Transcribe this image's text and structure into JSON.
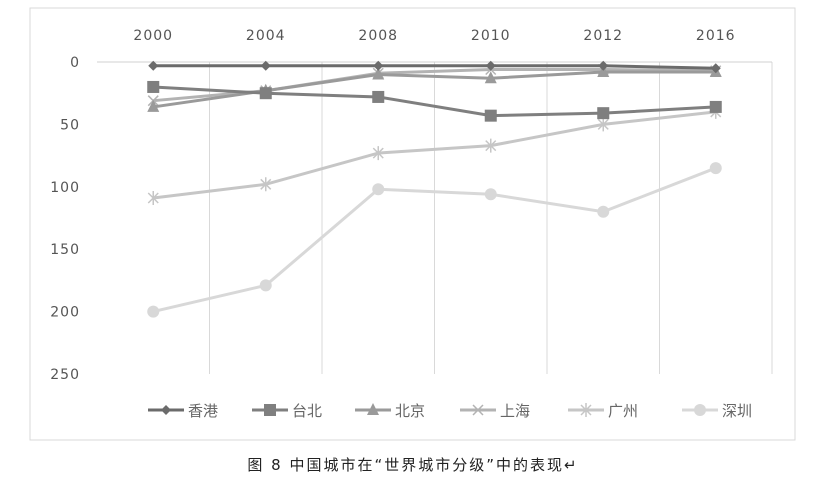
{
  "chart_data": {
    "type": "line",
    "title": "",
    "categories": [
      "2000",
      "2004",
      "2008",
      "2010",
      "2012",
      "2016"
    ],
    "x_axis_position": "top",
    "y_reversed": true,
    "ylim": [
      0,
      250
    ],
    "yticks": [
      "0",
      "50",
      "100",
      "150",
      "200",
      "250"
    ],
    "grid": "vertical",
    "legend_position": "bottom",
    "series": [
      {
        "name": "香港",
        "marker": "diamond",
        "color": "#6b6b6b",
        "values": [
          3,
          3,
          3,
          3,
          3,
          5
        ]
      },
      {
        "name": "台北",
        "marker": "square",
        "color": "#7f7f7f",
        "values": [
          20,
          25,
          28,
          43,
          41,
          36
        ]
      },
      {
        "name": "北京",
        "marker": "triangle",
        "color": "#9a9a9a",
        "values": [
          36,
          23,
          10,
          13,
          8,
          8
        ]
      },
      {
        "name": "上海",
        "marker": "x",
        "color": "#b3b3b3",
        "values": [
          31,
          23,
          9,
          6,
          6,
          7
        ]
      },
      {
        "name": "广州",
        "marker": "star",
        "color": "#c6c6c6",
        "values": [
          109,
          98,
          73,
          67,
          50,
          40
        ]
      },
      {
        "name": "深圳",
        "marker": "circle",
        "color": "#d8d8d8",
        "values": [
          200,
          179,
          102,
          106,
          120,
          85
        ]
      }
    ]
  },
  "caption": "图 8   中国城市在“世界城市分级”中的表现↵"
}
